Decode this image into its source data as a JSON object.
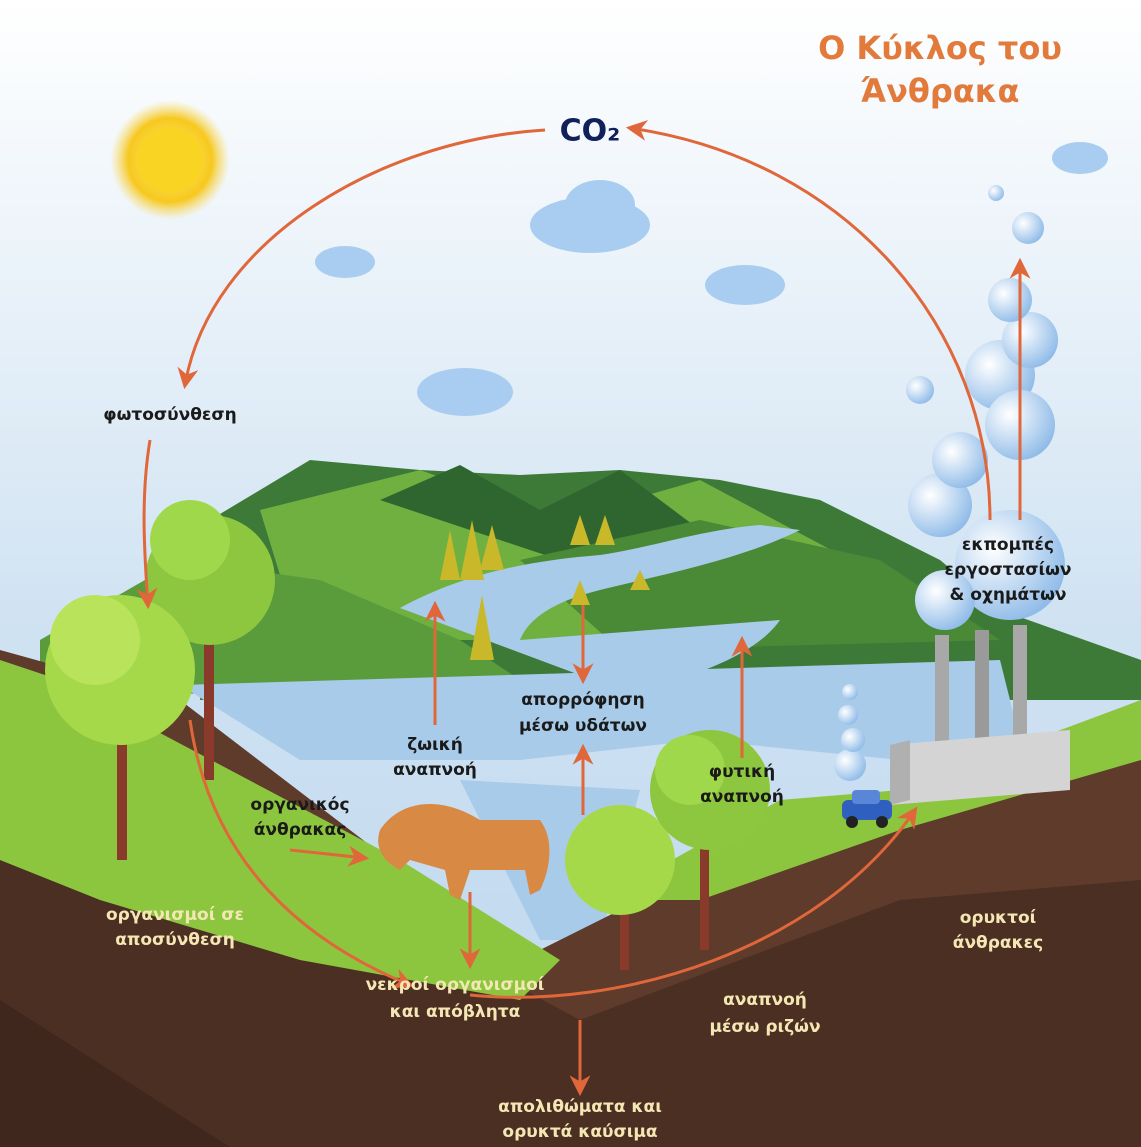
{
  "title": {
    "lines": [
      "Ο Κύκλος του",
      "Άνθρακα"
    ]
  },
  "co2": "CO₂",
  "labels": {
    "photosynthesis": [
      "φωτοσύνθεση"
    ],
    "emissions": [
      "εκπομπές",
      "εργοστασίων",
      "& οχημάτων"
    ],
    "water_absorption": [
      "απορρόφηση",
      "μέσω υδάτων"
    ],
    "animal_respiration": [
      "ζωική",
      "αναπνοή"
    ],
    "organic_carbon": [
      "οργανικός",
      "άνθρακας"
    ],
    "plant_respiration": [
      "φυτική",
      "αναπνοή"
    ],
    "decomposing": [
      "οργανισμοί σε",
      "αποσύνθεση"
    ],
    "dead_organisms": [
      "νεκροί οργανισμοί",
      "και απόβλητα"
    ],
    "root_respiration": [
      "αναπνοή",
      "μέσω ριζών"
    ],
    "fossil_coal": [
      "ορυκτοί",
      "άνθρακες"
    ],
    "fossil_fuels": [
      "απολιθώματα και",
      "ορυκτά καύσιμα"
    ]
  }
}
